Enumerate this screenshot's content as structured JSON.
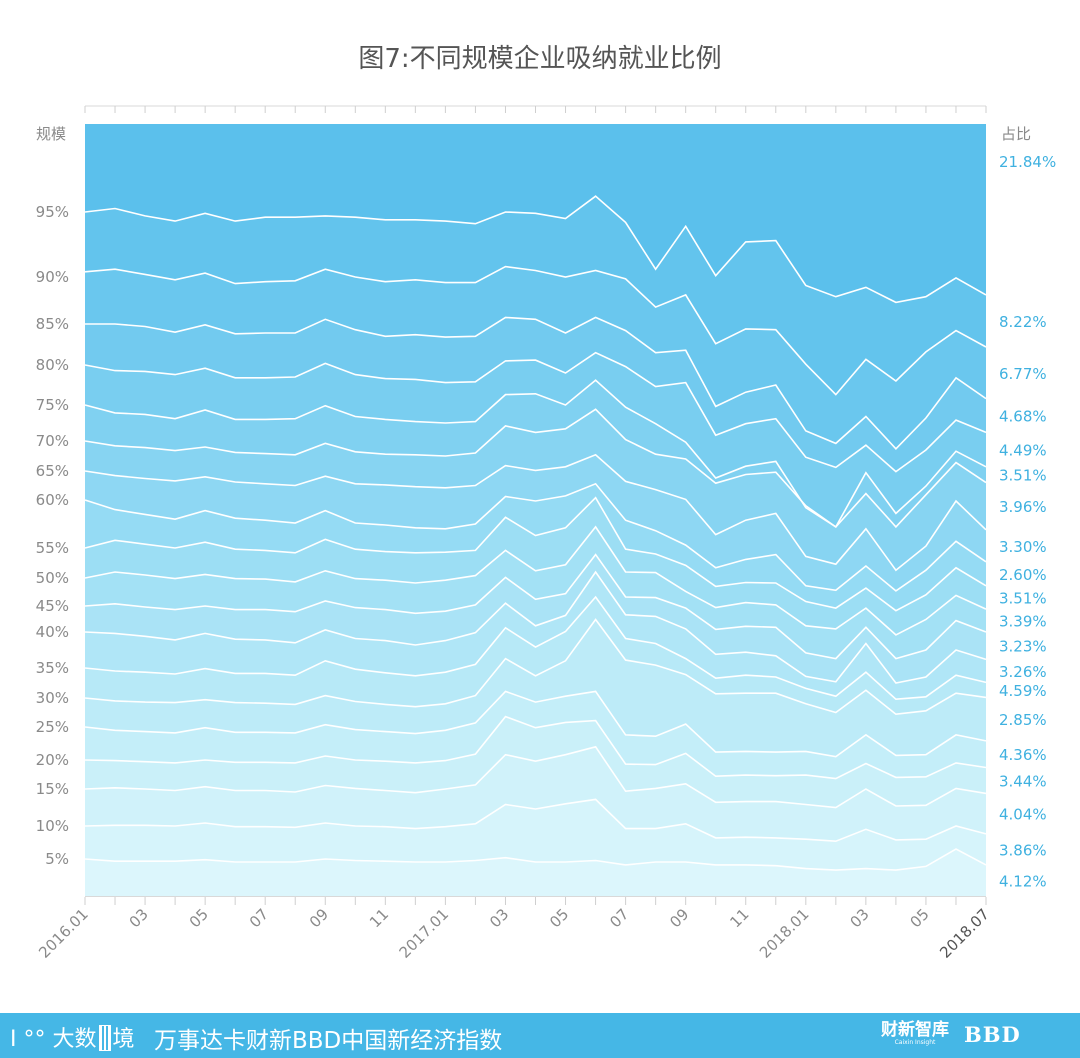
{
  "chart_data": {
    "type": "area",
    "title": "图7:不同规模企业吸纳就业比例",
    "left_axis_label": "规模",
    "right_axis_label": "占比",
    "x_tick_labels": [
      "2016.01",
      "",
      "03",
      "",
      "05",
      "",
      "07",
      "",
      "09",
      "",
      "11",
      "",
      "2017.01",
      "",
      "03",
      "",
      "05",
      "",
      "07",
      "",
      "09",
      "",
      "11",
      "",
      "2018.01",
      "",
      "03",
      "",
      "05",
      "",
      "2018.07"
    ],
    "scale_labels": [
      {
        "label": "95%",
        "value": 95
      },
      {
        "label": "90%",
        "value": 90
      },
      {
        "label": "85%",
        "value": 85
      },
      {
        "label": "80%",
        "value": 80
      },
      {
        "label": "75%",
        "value": 75
      },
      {
        "label": "70%",
        "value": 70
      },
      {
        "label": "65%",
        "value": 65
      },
      {
        "label": "60%",
        "value": 60
      },
      {
        "label": "55%",
        "value": 55
      },
      {
        "label": "50%",
        "value": 50
      },
      {
        "label": "45%",
        "value": 45
      },
      {
        "label": "40%",
        "value": 40
      },
      {
        "label": "35%",
        "value": 35
      },
      {
        "label": "30%",
        "value": 30
      },
      {
        "label": "25%",
        "value": 25
      },
      {
        "label": "20%",
        "value": 20
      },
      {
        "label": "15%",
        "value": 15
      },
      {
        "label": "10%",
        "value": 10
      },
      {
        "label": "5%",
        "value": 5
      }
    ],
    "share_labels": [
      "21.84%",
      "8.22%",
      "6.77%",
      "4.68%",
      "4.49%",
      "3.51%",
      "3.96%",
      "3.30%",
      "2.60%",
      "3.51%",
      "3.39%",
      "3.23%",
      "3.26%",
      "4.59%",
      "2.85%",
      "4.36%",
      "3.44%",
      "4.04%",
      "3.86%",
      "4.12%"
    ],
    "boundary_series": [
      [
        95,
        95.2,
        94.7,
        94.3,
        94.9,
        94.3,
        94.6,
        94.6,
        94.7,
        94.6,
        94.4,
        94.4,
        94.3,
        94.1,
        95,
        94.9,
        94.5,
        95.9,
        94.2,
        90.6,
        93.9,
        90.1,
        92.7,
        92.8,
        89.1,
        87.9,
        88.9,
        87.3,
        87.9,
        89.9,
        88.1
      ],
      [
        90.4,
        90.6,
        90.2,
        89.7,
        90.3,
        89.3,
        89.5,
        89.6,
        90.6,
        90,
        89.5,
        89.7,
        89.4,
        89.4,
        90.8,
        90.5,
        90,
        90.5,
        89.8,
        86.8,
        88.1,
        82.6,
        84.4,
        84.3,
        80.1,
        76.3,
        80.7,
        78,
        81.6,
        84.2,
        82.2
      ],
      [
        85,
        85,
        84.7,
        84,
        84.9,
        83.8,
        83.9,
        83.9,
        85.5,
        84.3,
        83.5,
        83.7,
        83.4,
        83.5,
        85.7,
        85.5,
        83.9,
        85.7,
        84.2,
        81.5,
        81.8,
        74.8,
        76.6,
        77.5,
        71.4,
        69.6,
        73.4,
        68.7,
        73.2,
        78.4,
        75.8
      ],
      [
        80,
        79.3,
        79.2,
        78.8,
        79.6,
        78.4,
        78.4,
        78.5,
        80.2,
        78.8,
        78.3,
        78.2,
        77.8,
        77.9,
        80.5,
        80.6,
        79,
        81.5,
        79.8,
        77.3,
        77.8,
        70.8,
        72.4,
        73.1,
        67.3,
        65.6,
        69.3,
        64.9,
        68.5,
        72.9,
        71.2
      ],
      [
        75,
        73.9,
        73.7,
        73.1,
        74.3,
        73.0,
        73.0,
        73.1,
        74.9,
        73.4,
        73.0,
        72.7,
        72.5,
        72.7,
        76.3,
        76.4,
        75,
        78.1,
        74.7,
        72.4,
        69.8,
        63.8,
        65.8,
        66.6,
        59.2,
        57.2,
        64.7,
        58.6,
        62.4,
        68.3,
        65.7
      ],
      [
        70,
        69.2,
        68.9,
        68.4,
        69.0,
        68.1,
        67.9,
        67.7,
        69.6,
        68.2,
        67.8,
        67.7,
        67.5,
        68.0,
        72.1,
        71.2,
        71.7,
        74.4,
        70.2,
        67.8,
        67.0,
        62.9,
        64.4,
        64.8,
        59.4,
        57.2,
        61.1,
        57.2,
        60.9,
        66.4,
        63.0
      ],
      [
        65,
        64.2,
        63.7,
        63.3,
        64.0,
        63.1,
        62.8,
        62.5,
        64.1,
        62.8,
        62.6,
        62.3,
        62.1,
        62.5,
        65.9,
        65.1,
        65.7,
        67.7,
        63.2,
        61.8,
        60.1,
        56.4,
        57.9,
        58.6,
        53.6,
        52.3,
        57.0,
        51.3,
        55.2,
        59.9,
        56.9
      ],
      [
        60,
        59.0,
        58.5,
        58.0,
        58.9,
        58.1,
        57.9,
        57.6,
        58.9,
        57.6,
        57.4,
        57.1,
        57.0,
        57.5,
        60.6,
        59.9,
        60.7,
        62.8,
        57.9,
        56.8,
        55.3,
        51.7,
        53.1,
        53.9,
        48.6,
        47.8,
        52.0,
        47.7,
        51.3,
        55.7,
        52.7
      ],
      [
        55,
        55.8,
        55.4,
        55.0,
        55.6,
        54.8,
        54.6,
        54.2,
        55.9,
        54.8,
        54.4,
        54.2,
        54.3,
        54.6,
        58.2,
        56.3,
        57.1,
        60.4,
        54.8,
        54.0,
        52.1,
        48.5,
        49.2,
        49.1,
        45.8,
        44.6,
        48.2,
        44.1,
        47.0,
        51.7,
        48.6
      ],
      [
        50,
        51.0,
        50.5,
        49.9,
        50.6,
        49.9,
        49.8,
        49.3,
        51.2,
        49.9,
        49.6,
        49.1,
        49.6,
        50.4,
        54.6,
        51.2,
        52.2,
        57.2,
        51.0,
        50.9,
        47.6,
        44.7,
        45.6,
        45.2,
        41.2,
        40.6,
        44.6,
        39.6,
        42.4,
        46.9,
        44.4
      ],
      [
        45,
        45.4,
        44.8,
        44.3,
        45.0,
        44.3,
        44.3,
        43.9,
        45.9,
        44.7,
        44.3,
        43.6,
        44.0,
        45.2,
        50.1,
        46.2,
        47.2,
        53.9,
        46.6,
        46.5,
        44.6,
        40.5,
        41.1,
        40.9,
        37.1,
        36.3,
        40.9,
        36.3,
        37.5,
        42.2,
        40.0
      ],
      [
        40,
        39.8,
        39.4,
        38.9,
        39.8,
        39.0,
        38.9,
        38.5,
        40.4,
        39.1,
        38.8,
        38.2,
        38.8,
        39.9,
        45.5,
        41.2,
        43.2,
        51.0,
        43.3,
        43.0,
        40.6,
        36.9,
        37.2,
        36.7,
        33.6,
        32.7,
        38.4,
        32.5,
        33.5,
        37.5,
        36.2
      ],
      [
        35,
        34.5,
        34.3,
        34.0,
        34.9,
        34.1,
        34.1,
        33.8,
        36.0,
        34.8,
        34.2,
        33.7,
        34.3,
        35.5,
        40.8,
        37.9,
        40.1,
        46.6,
        39.1,
        38.4,
        36.3,
        33.3,
        33.8,
        33.5,
        31.6,
        30.3,
        34.3,
        29.8,
        30.2,
        33.8,
        32.6
      ],
      [
        30,
        29.5,
        29.3,
        29.2,
        29.7,
        29.2,
        29.1,
        28.9,
        30.4,
        29.4,
        28.9,
        28.5,
        29.0,
        30.4,
        36.3,
        33.7,
        36.0,
        42.4,
        36.1,
        35.4,
        33.9,
        30.7,
        30.8,
        30.8,
        29.0,
        27.5,
        31.3,
        27.2,
        27.8,
        30.8,
        30.1
      ],
      [
        25,
        24.5,
        24.3,
        24.1,
        24.9,
        24.2,
        24.2,
        24.1,
        25.4,
        24.6,
        24.3,
        24.0,
        24.5,
        25.7,
        31.1,
        29.3,
        30.3,
        31.1,
        23.8,
        23.6,
        25.5,
        21.2,
        21.3,
        21.2,
        21.3,
        20.5,
        23.8,
        20.7,
        20.8,
        23.8,
        22.9
      ],
      [
        20,
        19.9,
        19.7,
        19.5,
        20.0,
        19.6,
        19.6,
        19.5,
        20.6,
        20.0,
        19.8,
        19.5,
        19.9,
        20.9,
        26.8,
        24.9,
        25.8,
        26.1,
        19.3,
        19.2,
        21.0,
        17.2,
        17.4,
        17.3,
        17.4,
        16.8,
        19.4,
        17.0,
        17.1,
        19.5,
        18.7
      ],
      [
        15,
        15.2,
        15.0,
        14.8,
        15.4,
        14.8,
        14.8,
        14.6,
        15.6,
        15.1,
        14.8,
        14.5,
        15.0,
        15.7,
        20.8,
        19.8,
        20.8,
        22.0,
        14.7,
        15.1,
        15.9,
        13.2,
        13.3,
        13.3,
        12.9,
        12.5,
        15.0,
        12.7,
        12.8,
        15.1,
        14.4
      ],
      [
        10,
        10.1,
        10.1,
        10.0,
        10.4,
        9.9,
        9.9,
        9.8,
        10.4,
        10.0,
        9.9,
        9.6,
        9.9,
        10.3,
        12.9,
        12.3,
        13.0,
        13.6,
        9.6,
        9.6,
        10.3,
        8.2,
        8.3,
        8.2,
        8.0,
        7.7,
        9.5,
        7.9,
        8.0,
        10.0,
        8.8
      ],
      [
        5,
        4.7,
        4.7,
        4.7,
        4.9,
        4.6,
        4.6,
        4.6,
        5.0,
        4.8,
        4.7,
        4.6,
        4.6,
        4.8,
        5.2,
        4.6,
        4.6,
        4.8,
        4.2,
        4.6,
        4.6,
        4.2,
        4.2,
        4.1,
        3.7,
        3.5,
        3.7,
        3.5,
        4.0,
        6.5,
        4.2
      ]
    ],
    "band_colors": [
      "#5bc0ec",
      "#63c4ed",
      "#6ac7ee",
      "#72caef",
      "#79cef0",
      "#80d1f1",
      "#87d4f2",
      "#8ed7f3",
      "#95dbf4",
      "#9cdef4",
      "#a3e1f5",
      "#aae3f6",
      "#b0e6f7",
      "#b7e9f7",
      "#bdebf8",
      "#c4eef9",
      "#caf0f9",
      "#d0f2fa",
      "#d6f4fb",
      "#dcf6fc"
    ],
    "line_color": "#ffffff",
    "label_color": "#3fb1e0",
    "axis_text_color": "#8a8a8a"
  },
  "footer": {
    "logo_prefix": "Ⅰ °°",
    "logo_text_1": "大数",
    "logo_text_2": "境",
    "title": "万事达卡财新BBD中国新经济指数",
    "partner_name": "财新智库",
    "partner_sub": "Caixin Insight",
    "brand": "BBD"
  },
  "colors": {
    "footer_background": "#45b7e6",
    "title_color": "#555555"
  }
}
